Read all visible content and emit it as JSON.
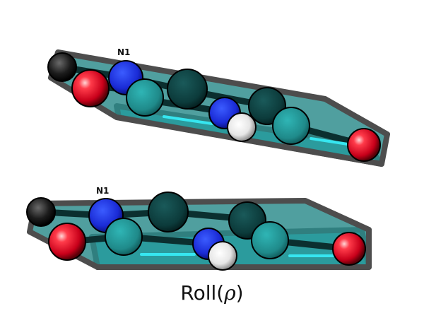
{
  "figure": {
    "caption_prefix": "Roll(",
    "caption_symbol": "ρ",
    "caption_suffix": ")",
    "label_top": "N1",
    "label_bottom": "N1"
  },
  "colors": {
    "plane_outline": "#4d4d4d",
    "plane_fill_top": "#2a8a8a",
    "plane_fill_bottom": "#36e6f0",
    "carbon": "#1f8a8a",
    "carbon_dark": "#0b3d3d",
    "nitrogen": "#1a2bd6",
    "oxygen": "#e8102a",
    "hydrogen": "#e8e8e8",
    "dark_atom": "#141414"
  }
}
